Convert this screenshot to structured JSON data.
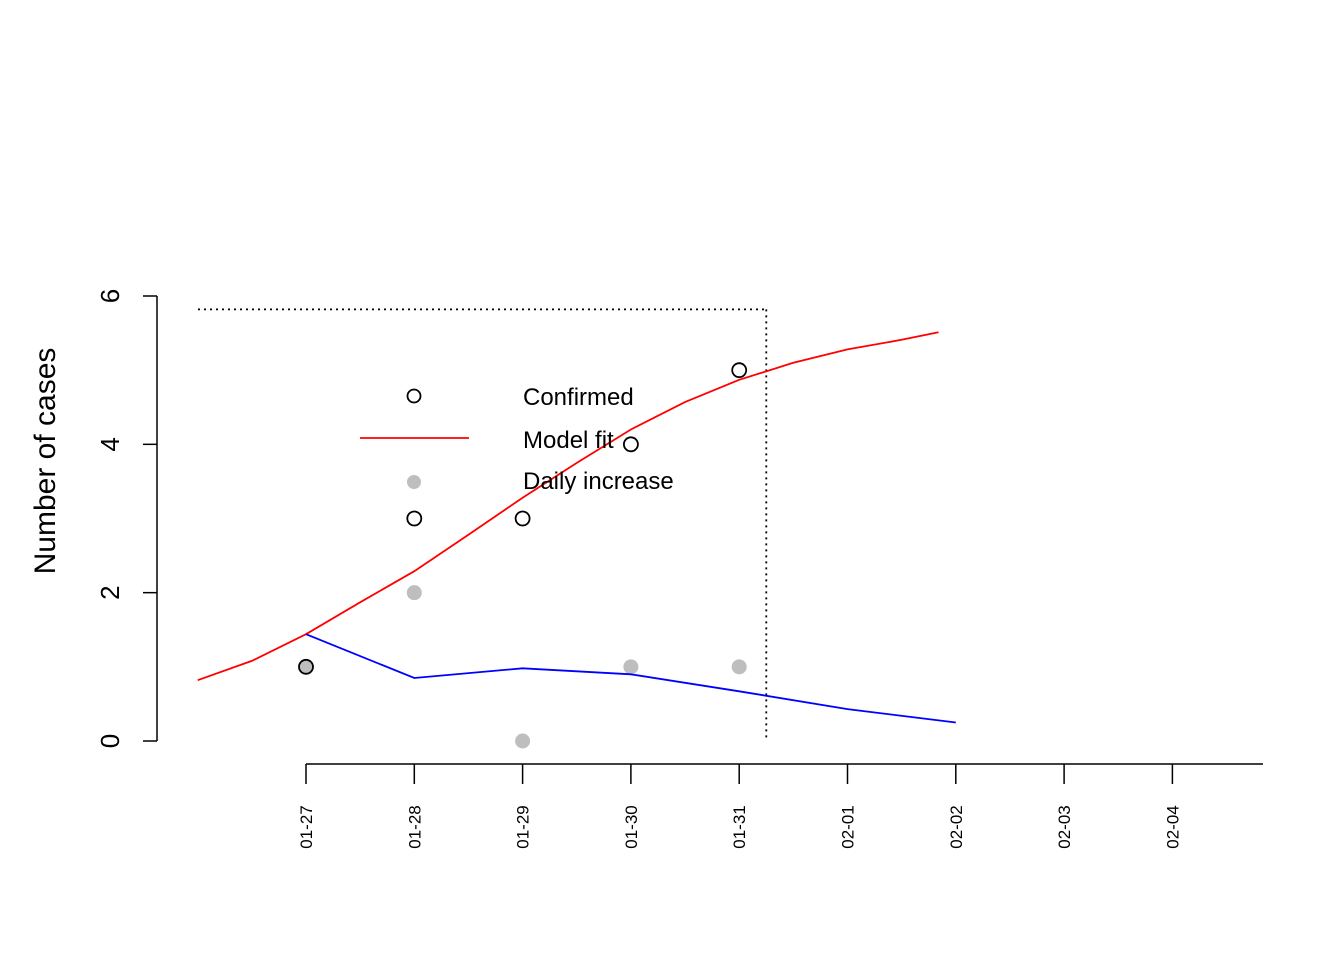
{
  "chart_data": {
    "type": "scatter",
    "title": "",
    "xlabel": "",
    "ylabel": "Number of cases",
    "ylim": [
      0,
      6
    ],
    "yticks": [
      "0",
      "2",
      "4",
      "6"
    ],
    "x_dates": [
      "01-27",
      "01-28",
      "01-29",
      "01-30",
      "01-31",
      "02-01",
      "02-02",
      "02-03",
      "02-04"
    ],
    "series": [
      {
        "name": "Confirmed",
        "kind": "points",
        "marker": "open-circle",
        "color": "#000000",
        "x": [
          "01-27",
          "01-28",
          "01-29",
          "01-30",
          "01-31"
        ],
        "y": [
          1,
          3,
          3,
          4,
          5
        ]
      },
      {
        "name": "Model fit",
        "kind": "line",
        "color": "#ff0000",
        "x": [
          "01-26",
          "01-26.5",
          "01-27",
          "01-27.5",
          "01-28",
          "01-28.5",
          "01-29",
          "01-29.5",
          "01-30",
          "01-30.5",
          "01-31",
          "01-31.5",
          "02-01",
          "02-01.5",
          "02-01.84"
        ],
        "x_offset_days": [
          -1.0,
          -0.5,
          0.0,
          0.5,
          1.0,
          1.5,
          2.0,
          2.5,
          3.0,
          3.5,
          4.0,
          4.5,
          5.0,
          5.5,
          5.84
        ],
        "y": [
          0.82,
          1.08,
          1.44,
          1.87,
          2.29,
          2.78,
          3.28,
          3.75,
          4.2,
          4.57,
          4.87,
          5.1,
          5.28,
          5.41,
          5.51
        ]
      },
      {
        "name": "Daily increase",
        "kind": "points",
        "marker": "filled-circle",
        "color": "#bebebe",
        "x": [
          "01-27",
          "01-28",
          "01-29",
          "01-30",
          "01-31"
        ],
        "y": [
          1,
          2,
          0,
          1,
          1
        ]
      },
      {
        "kind": "line",
        "color": "#0000ff",
        "x": [
          "01-27",
          "01-28",
          "01-29",
          "01-30",
          "01-31",
          "02-01",
          "02-02"
        ],
        "y": [
          1.44,
          0.85,
          0.98,
          0.9,
          0.67,
          0.43,
          0.25
        ]
      }
    ],
    "reference_lines": [
      {
        "orientation": "horizontal",
        "y": 5.82,
        "style": "dotted",
        "color": "#000000"
      },
      {
        "orientation": "vertical",
        "x": "01-31",
        "x_offset_days": 4.25,
        "style": "dotted",
        "color": "#000000"
      }
    ],
    "legend": {
      "placement": "center-left",
      "entries": [
        "Confirmed",
        "Model fit",
        "Daily increase"
      ]
    },
    "grid": false
  }
}
